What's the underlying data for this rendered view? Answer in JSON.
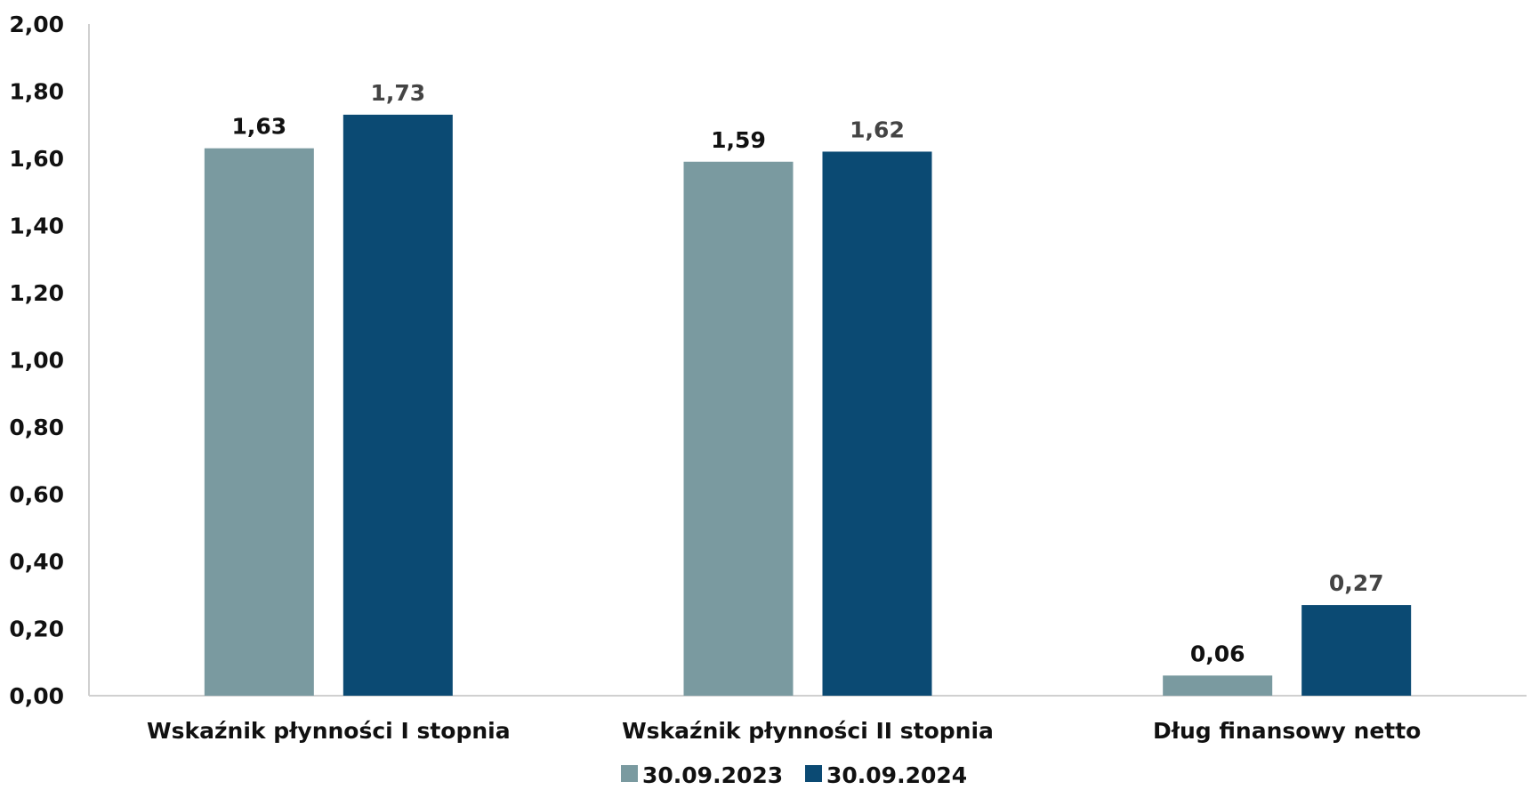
{
  "chart_data": {
    "type": "bar",
    "title": "",
    "xlabel": "",
    "ylabel": "",
    "ylim": [
      0,
      2
    ],
    "y_ticks": [
      "0,00",
      "0,20",
      "0,40",
      "0,60",
      "0,80",
      "1,00",
      "1,20",
      "1,40",
      "1,60",
      "1,80",
      "2,00"
    ],
    "grid": false,
    "legend_position": "bottom",
    "categories": [
      "Wskaźnik płynności I stopnia",
      "Wskaźnik płynności II stopnia",
      "Dług finansowy netto"
    ],
    "series": [
      {
        "name": "30.09.2023",
        "color": "#7a9aa0",
        "label_color": "#111111",
        "values": [
          1.63,
          1.59,
          0.06
        ],
        "labels": [
          "1,63",
          "1,59",
          "0,06"
        ]
      },
      {
        "name": "30.09.2024",
        "color": "#0b4a73",
        "label_color": "#444444",
        "values": [
          1.73,
          1.62,
          0.27
        ],
        "labels": [
          "1,73",
          "1,62",
          "0,27"
        ]
      }
    ],
    "axis_color": "#d0d0d0"
  }
}
